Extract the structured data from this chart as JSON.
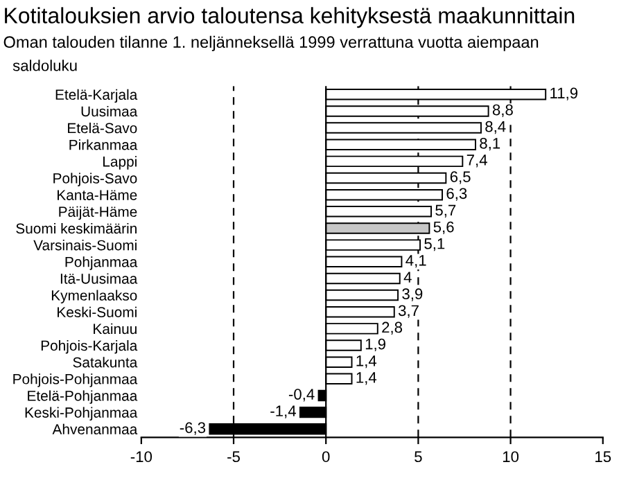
{
  "chart_data": {
    "type": "bar",
    "orientation": "horizontal",
    "title": "Kotitalouksien arvio taloutensa kehityksestä maakunnittain",
    "subtitle": "Oman talouden tilanne 1. neljänneksellä 1999 verrattuna vuotta aiempaan",
    "ylabel": "saldoluku",
    "categories": [
      "Etelä-Karjala",
      "Uusimaa",
      "Etelä-Savo",
      "Pirkanmaa",
      "Lappi",
      "Pohjois-Savo",
      "Kanta-Häme",
      "Päijät-Häme",
      "Suomi keskimäärin",
      "Varsinais-Suomi",
      "Pohjanmaa",
      "Itä-Uusimaa",
      "Kymenlaakso",
      "Keski-Suomi",
      "Kainuu",
      "Pohjois-Karjala",
      "Satakunta",
      "Pohjois-Pohjanmaa",
      "Etelä-Pohjanmaa",
      "Keski-Pohjanmaa",
      "Ahvenanmaa"
    ],
    "values": [
      11.9,
      8.8,
      8.4,
      8.1,
      7.4,
      6.5,
      6.3,
      5.7,
      5.6,
      5.1,
      4.1,
      4,
      3.9,
      3.7,
      2.8,
      1.9,
      1.4,
      1.4,
      -0.4,
      -1.4,
      -6.3
    ],
    "value_labels": [
      "11,9",
      "8,8",
      "8,4",
      "8,1",
      "7,4",
      "6,5",
      "6,3",
      "5,7",
      "5,6",
      "5,1",
      "4,1",
      "4",
      "3,9",
      "3,7",
      "2,8",
      "1,9",
      "1,4",
      "1,4",
      "-0,4",
      "-1,4",
      "-6,3"
    ],
    "colors": [
      "#ffffff",
      "#ffffff",
      "#ffffff",
      "#ffffff",
      "#ffffff",
      "#ffffff",
      "#ffffff",
      "#ffffff",
      "#c8c8c8",
      "#ffffff",
      "#ffffff",
      "#ffffff",
      "#ffffff",
      "#ffffff",
      "#ffffff",
      "#ffffff",
      "#ffffff",
      "#ffffff",
      "#000000",
      "#000000",
      "#000000"
    ],
    "xlim": [
      -10,
      15
    ],
    "xticks": [
      -10,
      -5,
      0,
      5,
      10,
      15
    ],
    "ref_lines": [
      {
        "axis": "x",
        "value": -5,
        "line_style": "dashed",
        "color": "#000000"
      },
      {
        "axis": "x",
        "value": 5,
        "line_style": "dashed",
        "color": "#000000"
      },
      {
        "axis": "x",
        "value": 10,
        "line_style": "dashed",
        "color": "#000000"
      }
    ],
    "grid": false
  }
}
